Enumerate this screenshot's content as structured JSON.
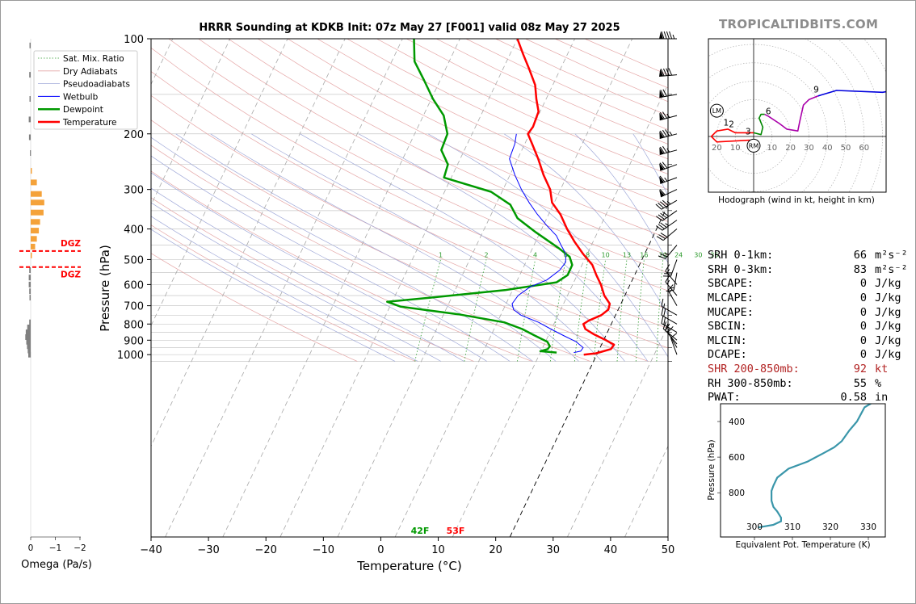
{
  "brand": "TROPICALTIDBITS.COM",
  "chart_data": [
    {
      "type": "line",
      "subtype": "skew-t",
      "title": "HRRR Sounding at KDKB Init: 07z May 27 [F001] valid 08z May 27 2025",
      "xlabel": "Temperature (°C)",
      "ylabel": "Pressure (hPa)",
      "xlim": [
        -40,
        50
      ],
      "ylim": [
        1050,
        100
      ],
      "yscale": "log",
      "x_ticks": [
        -40,
        -30,
        -20,
        -10,
        0,
        10,
        20,
        30,
        40,
        50
      ],
      "y_ticks": [
        100,
        200,
        300,
        400,
        500,
        600,
        700,
        800,
        900,
        1000
      ],
      "legend": {
        "placement": "top-left",
        "entries": [
          "Sat. Mix. Ratio",
          "Dry Adiabats",
          "Pseudoadiabats",
          "Wetbulb",
          "Dewpoint",
          "Temperature"
        ]
      },
      "mixing_ratio_labels": [
        "1",
        "2",
        "4",
        "6",
        "8",
        "10",
        "13",
        "16",
        "20",
        "24",
        "30",
        "36"
      ],
      "surface_labels": {
        "dewpoint": "42F",
        "temperature": "53F"
      },
      "series": [
        {
          "name": "Temperature",
          "color": "#ff0000",
          "points": [
            [
              12,
              1000
            ],
            [
              14,
              990
            ],
            [
              16,
              960
            ],
            [
              16,
              930
            ],
            [
              14,
              900
            ],
            [
              11,
              860
            ],
            [
              9,
              830
            ],
            [
              8,
              800
            ],
            [
              8.5,
              780
            ],
            [
              10,
              750
            ],
            [
              10.5,
              720
            ],
            [
              10,
              690
            ],
            [
              8,
              650
            ],
            [
              6,
              600
            ],
            [
              4,
              560
            ],
            [
              2,
              520
            ],
            [
              -1,
              480
            ],
            [
              -4,
              440
            ],
            [
              -7,
              400
            ],
            [
              -10,
              360
            ],
            [
              -13,
              330
            ],
            [
              -15,
              300
            ],
            [
              -18,
              270
            ],
            [
              -21,
              240
            ],
            [
              -24,
              215
            ],
            [
              -26,
              200
            ],
            [
              -26,
              190
            ],
            [
              -27,
              170
            ],
            [
              -29,
              155
            ],
            [
              -31,
              140
            ],
            [
              -34,
              125
            ],
            [
              -37,
              112
            ],
            [
              -40,
              100
            ]
          ]
        },
        {
          "name": "Dewpoint",
          "color": "#009900",
          "points": [
            [
              7,
              985
            ],
            [
              4,
              975
            ],
            [
              5,
              960
            ],
            [
              5,
              940
            ],
            [
              4,
              910
            ],
            [
              1,
              870
            ],
            [
              -2,
              830
            ],
            [
              -6,
              790
            ],
            [
              -15,
              745
            ],
            [
              -26,
              705
            ],
            [
              -29,
              680
            ],
            [
              -22,
              660
            ],
            [
              -10,
              625
            ],
            [
              -2,
              590
            ],
            [
              -1,
              560
            ],
            [
              -1.5,
              520
            ],
            [
              -3,
              490
            ],
            [
              -6,
              460
            ],
            [
              -12,
              410
            ],
            [
              -17,
              370
            ],
            [
              -20,
              335
            ],
            [
              -25,
              305
            ],
            [
              -35,
              275
            ],
            [
              -36,
              250
            ],
            [
              -39,
              225
            ],
            [
              -40,
              200
            ],
            [
              -43,
              175
            ],
            [
              -47,
              155
            ],
            [
              -51,
              135
            ],
            [
              -55,
              118
            ],
            [
              -58,
              100
            ]
          ]
        },
        {
          "name": "Wetbulb",
          "color": "#0000ff",
          "points": [
            [
              10,
              985
            ],
            [
              11,
              975
            ],
            [
              11,
              950
            ],
            [
              9,
              910
            ],
            [
              6,
              870
            ],
            [
              3,
              830
            ],
            [
              0,
              790
            ],
            [
              -4,
              750
            ],
            [
              -6,
              720
            ],
            [
              -7,
              690
            ],
            [
              -7,
              650
            ],
            [
              -6,
              610
            ],
            [
              -4,
              580
            ],
            [
              -3,
              540
            ],
            [
              -3,
              510
            ],
            [
              -4,
              480
            ],
            [
              -6,
              450
            ],
            [
              -8,
              420
            ],
            [
              -11,
              390
            ],
            [
              -14,
              360
            ],
            [
              -17,
              330
            ],
            [
              -20,
              300
            ],
            [
              -23,
              270
            ],
            [
              -26,
              240
            ],
            [
              -27,
              215
            ],
            [
              -28,
              200
            ]
          ]
        }
      ]
    },
    {
      "type": "line",
      "subtype": "hodograph",
      "xlabel": "Hodograph (wind in kt, height in km)",
      "x_ticks": [
        "20",
        "10",
        "10",
        "20",
        "30",
        "40",
        "50",
        "60"
      ],
      "markers": [
        "LM",
        "RM"
      ],
      "height_labels": [
        "1",
        "2",
        "3",
        "6",
        "9"
      ],
      "series": [
        {
          "name": "0-1 km",
          "color": "#ff0000",
          "points": [
            [
              -2,
              -2
            ],
            [
              -20,
              -3
            ],
            [
              -23,
              0
            ],
            [
              -20,
              3
            ],
            [
              -14,
              4
            ],
            [
              -10,
              2
            ],
            [
              -6,
              2
            ],
            [
              0,
              2
            ]
          ]
        },
        {
          "name": "1-3 km",
          "color": "#008800",
          "points": [
            [
              0,
              2
            ],
            [
              4,
              1
            ],
            [
              5,
              5
            ],
            [
              3,
              10
            ],
            [
              4,
              12
            ],
            [
              6,
              12
            ]
          ]
        },
        {
          "name": "3-6 km",
          "color": "#aa00aa",
          "points": [
            [
              6,
              12
            ],
            [
              8,
              11
            ],
            [
              14,
              7
            ],
            [
              18,
              4
            ],
            [
              24,
              3
            ],
            [
              25,
              8
            ],
            [
              27,
              17
            ],
            [
              30,
              20
            ],
            [
              35,
              22
            ]
          ]
        },
        {
          "name": "6-9 km",
          "color": "#0000dd",
          "points": [
            [
              35,
              22
            ],
            [
              45,
              25
            ],
            [
              70,
              24
            ],
            [
              76,
              25
            ],
            [
              79,
              28
            ],
            [
              83,
              27
            ]
          ]
        }
      ]
    },
    {
      "type": "line",
      "subtype": "theta-e profile",
      "xlabel": "Equivalent Pot. Temperature (K)",
      "ylabel": "Pressure (hPa)",
      "x_ticks": [
        300,
        310,
        320,
        330
      ],
      "y_ticks": [
        400,
        600,
        800
      ],
      "color": "#3a96aa",
      "points": [
        [
          301,
          995
        ],
        [
          305,
          980
        ],
        [
          307,
          960
        ],
        [
          307,
          940
        ],
        [
          306,
          905
        ],
        [
          305,
          880
        ],
        [
          304.5,
          845
        ],
        [
          304.5,
          790
        ],
        [
          305,
          760
        ],
        [
          306,
          715
        ],
        [
          309,
          665
        ],
        [
          314,
          625
        ],
        [
          318,
          580
        ],
        [
          321,
          545
        ],
        [
          323,
          510
        ],
        [
          325,
          450
        ],
        [
          327,
          400
        ],
        [
          328,
          360
        ],
        [
          329,
          320
        ],
        [
          331,
          295
        ]
      ]
    },
    {
      "type": "bar",
      "subtype": "omega",
      "xlabel": "Omega (Pa/s)",
      "x_ticks": [
        "0",
        "−1",
        "−2"
      ],
      "dgz_label": "DGZ",
      "dgz_top_hpa": 470,
      "dgz_bottom_hpa": 528,
      "values": [
        {
          "p": 105,
          "omega": 0.05
        },
        {
          "p": 130,
          "omega": 0.06
        },
        {
          "p": 155,
          "omega": 0.05
        },
        {
          "p": 180,
          "omega": 0.08
        },
        {
          "p": 205,
          "omega": 0.07
        },
        {
          "p": 230,
          "omega": 0.03
        },
        {
          "p": 262,
          "omega": -0.05
        },
        {
          "p": 285,
          "omega": -0.25
        },
        {
          "p": 310,
          "omega": -0.45
        },
        {
          "p": 330,
          "omega": -0.55
        },
        {
          "p": 355,
          "omega": -0.52
        },
        {
          "p": 380,
          "omega": -0.38
        },
        {
          "p": 405,
          "omega": -0.33
        },
        {
          "p": 430,
          "omega": -0.25
        },
        {
          "p": 455,
          "omega": -0.18
        },
        {
          "p": 485,
          "omega": -0.05
        },
        {
          "p": 540,
          "omega": 0.06
        },
        {
          "p": 570,
          "omega": 0.08
        },
        {
          "p": 600,
          "omega": 0.08
        },
        {
          "p": 630,
          "omega": 0.06
        },
        {
          "p": 660,
          "omega": 0.05
        },
        {
          "p": 790,
          "omega": 0.06
        },
        {
          "p": 820,
          "omega": 0.14
        },
        {
          "p": 850,
          "omega": 0.2
        },
        {
          "p": 880,
          "omega": 0.22
        },
        {
          "p": 910,
          "omega": 0.18
        },
        {
          "p": 940,
          "omega": 0.15
        },
        {
          "p": 970,
          "omega": 0.12
        },
        {
          "p": 1000,
          "omega": 0.1
        }
      ],
      "colors": {
        "negative": "#f4a23a",
        "positive": "#808080",
        "dgz": "#ff0000"
      }
    }
  ],
  "indices": [
    {
      "label": "SRH 0-1km:",
      "value": "66",
      "unit": "m²s⁻²",
      "color": "#000000"
    },
    {
      "label": "SRH 0-3km:",
      "value": "83",
      "unit": "m²s⁻²",
      "color": "#000000"
    },
    {
      "label": "SBCAPE:",
      "value": "0",
      "unit": "J/kg",
      "color": "#000000"
    },
    {
      "label": "MLCAPE:",
      "value": "0",
      "unit": "J/kg",
      "color": "#000000"
    },
    {
      "label": "MUCAPE:",
      "value": "0",
      "unit": "J/kg",
      "color": "#000000"
    },
    {
      "label": "SBCIN:",
      "value": "0",
      "unit": "J/kg",
      "color": "#000000"
    },
    {
      "label": "MLCIN:",
      "value": "0",
      "unit": "J/kg",
      "color": "#000000"
    },
    {
      "label": "DCAPE:",
      "value": "0",
      "unit": "J/kg",
      "color": "#000000"
    },
    {
      "label": "SHR 200-850mb:",
      "value": "92",
      "unit": "kt",
      "color": "#b22222"
    },
    {
      "label": "RH 300-850mb:",
      "value": "55",
      "unit": "%",
      "color": "#000000"
    },
    {
      "label": "PWAT:",
      "value": "0.58",
      "unit": "in",
      "color": "#000000"
    }
  ],
  "wind_barbs": [
    {
      "p": 100,
      "speed": 95,
      "dir": 270
    },
    {
      "p": 130,
      "speed": 90,
      "dir": 265
    },
    {
      "p": 150,
      "speed": 70,
      "dir": 260
    },
    {
      "p": 175,
      "speed": 75,
      "dir": 255
    },
    {
      "p": 200,
      "speed": 85,
      "dir": 255
    },
    {
      "p": 225,
      "speed": 75,
      "dir": 255
    },
    {
      "p": 250,
      "speed": 70,
      "dir": 250
    },
    {
      "p": 275,
      "speed": 65,
      "dir": 250
    },
    {
      "p": 300,
      "speed": 60,
      "dir": 245
    },
    {
      "p": 325,
      "speed": 45,
      "dir": 240
    },
    {
      "p": 350,
      "speed": 40,
      "dir": 235
    },
    {
      "p": 375,
      "speed": 35,
      "dir": 235
    },
    {
      "p": 400,
      "speed": 30,
      "dir": 230
    },
    {
      "p": 450,
      "speed": 25,
      "dir": 220
    },
    {
      "p": 500,
      "speed": 20,
      "dir": 200
    },
    {
      "p": 550,
      "speed": 15,
      "dir": 190
    },
    {
      "p": 600,
      "speed": 15,
      "dir": 320
    },
    {
      "p": 650,
      "speed": 15,
      "dir": 320
    },
    {
      "p": 700,
      "speed": 15,
      "dir": 330
    },
    {
      "p": 750,
      "speed": 15,
      "dir": 300
    },
    {
      "p": 800,
      "speed": 20,
      "dir": 300
    },
    {
      "p": 850,
      "speed": 20,
      "dir": 300
    },
    {
      "p": 900,
      "speed": 20,
      "dir": 310
    },
    {
      "p": 925,
      "speed": 15,
      "dir": 320
    },
    {
      "p": 950,
      "speed": 10,
      "dir": 330
    },
    {
      "p": 1000,
      "speed": 10,
      "dir": 340
    }
  ]
}
